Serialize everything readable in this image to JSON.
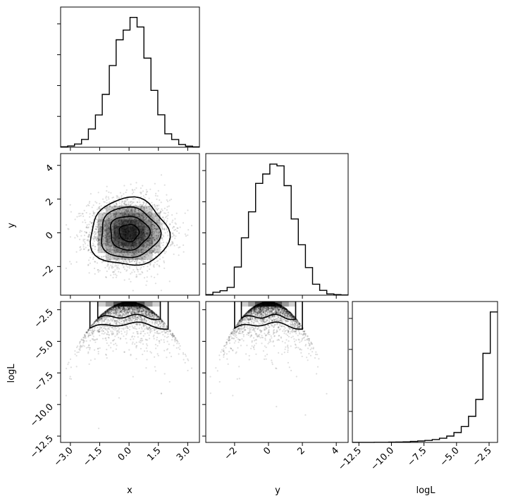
{
  "chart_data": {
    "type": "corner",
    "parameters": [
      "x",
      "y",
      "logL"
    ],
    "axis_labels": {
      "x": "x",
      "y": "y",
      "logL": "logL"
    },
    "ticks": {
      "x": {
        "values": [
          -3.0,
          -1.5,
          0.0,
          1.5,
          3.0
        ],
        "labels": [
          "−3.0",
          "−1.5",
          "0.0",
          "1.5",
          "3.0"
        ]
      },
      "y": {
        "values": [
          -2,
          0,
          2,
          4
        ],
        "labels": [
          "−2",
          "0",
          "2",
          "4"
        ]
      },
      "logL": {
        "values": [
          -12.5,
          -10.0,
          -7.5,
          -5.0,
          -2.5
        ],
        "labels": [
          "−12.5",
          "−10.0",
          "−7.5",
          "−5.0",
          "−2.5"
        ]
      }
    },
    "ranges": {
      "x": [
        -3.5,
        3.6
      ],
      "y": [
        -3.7,
        4.7
      ],
      "logL": [
        -13.0,
        -1.85
      ]
    },
    "grid": false,
    "histograms": {
      "x": {
        "bin_edges": [
          -3.5,
          -3.14,
          -2.79,
          -2.43,
          -2.08,
          -1.72,
          -1.37,
          -1.01,
          -0.66,
          -0.3,
          0.05,
          0.41,
          0.76,
          1.12,
          1.47,
          1.83,
          2.18,
          2.54,
          2.89,
          3.25,
          3.6
        ],
        "counts": [
          4,
          11,
          28,
          68,
          159,
          281,
          460,
          711,
          935,
          1020,
          1130,
          1047,
          776,
          495,
          283,
          117,
          67,
          23,
          9,
          3
        ]
      },
      "y": {
        "bin_edges": [
          -3.7,
          -3.28,
          -2.86,
          -2.44,
          -2.02,
          -1.6,
          -1.18,
          -0.76,
          -0.34,
          0.08,
          0.5,
          0.92,
          1.34,
          1.76,
          2.18,
          2.6,
          3.02,
          3.44,
          3.86,
          4.28,
          4.7
        ],
        "counts": [
          5,
          25,
          38,
          67,
          240,
          490,
          712,
          955,
          1035,
          1120,
          1105,
          936,
          651,
          431,
          236,
          94,
          41,
          11,
          5,
          2
        ]
      },
      "logL": {
        "bin_edges": [
          -13.0,
          -12.44,
          -11.89,
          -11.33,
          -10.77,
          -10.21,
          -9.66,
          -9.1,
          -8.54,
          -7.98,
          -7.43,
          -6.87,
          -6.31,
          -5.75,
          -5.2,
          -4.64,
          -4.08,
          -3.52,
          -2.97,
          -2.41,
          -1.85
        ],
        "counts": [
          2,
          2,
          3,
          4,
          5,
          8,
          12,
          18,
          30,
          45,
          62,
          90,
          130,
          200,
          310,
          500,
          820,
          1350,
          2800,
          4100
        ]
      }
    },
    "scatter": {
      "x_y": {
        "center": [
          0.0,
          0.0
        ],
        "sigma": [
          1.0,
          1.0
        ],
        "correlation": 0.0,
        "contour_levels_sigma": [
          0.5,
          1.0,
          1.5,
          2.0
        ]
      },
      "x_logL": {
        "relation": "logL = -(x^2 + y^2) / 2",
        "max": -1.9
      },
      "y_logL": {
        "relation": "logL = -(x^2 + y^2) / 2",
        "max": -1.9
      }
    }
  }
}
